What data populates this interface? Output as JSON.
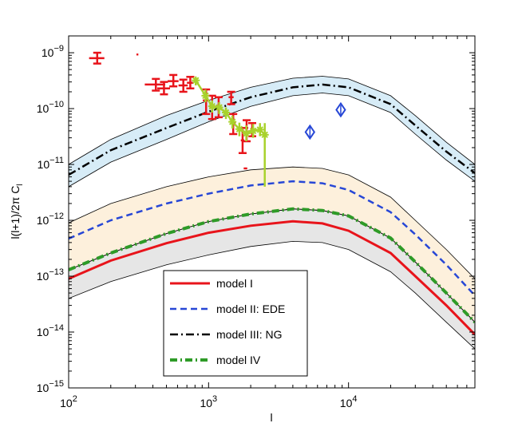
{
  "chart_data": {
    "type": "line",
    "xscale": "log",
    "yscale": "log",
    "xlim": [
      100,
      80000
    ],
    "ylim": [
      1e-15,
      2e-09
    ],
    "xlabel": "l",
    "ylabel": "l(l+1)/2π C_l",
    "x_ticks": [
      {
        "value": 100,
        "base": "10",
        "exp": "2"
      },
      {
        "value": 1000,
        "base": "10",
        "exp": "3"
      },
      {
        "value": 10000,
        "base": "10",
        "exp": "4"
      }
    ],
    "y_ticks": [
      {
        "value": 1e-15,
        "base": "10",
        "exp": "−15"
      },
      {
        "value": 1e-14,
        "base": "10",
        "exp": "−14"
      },
      {
        "value": 1e-13,
        "base": "10",
        "exp": "−13"
      },
      {
        "value": 1e-12,
        "base": "10",
        "exp": "−12"
      },
      {
        "value": 1e-11,
        "base": "10",
        "exp": "−11"
      },
      {
        "value": 1e-10,
        "base": "10",
        "exp": "−10"
      },
      {
        "value": 1e-09,
        "base": "10",
        "exp": "−9"
      }
    ],
    "x": [
      100,
      200,
      500,
      1000,
      2000,
      4000,
      6500,
      10000,
      20000,
      30000,
      50000,
      80000
    ],
    "series": [
      {
        "name": "model I",
        "color": "#e8141b",
        "style": "solid",
        "values": [
          9e-14,
          1.9e-13,
          3.9e-13,
          6e-13,
          8e-13,
          9.6e-13,
          8.8e-13,
          6.5e-13,
          2.6e-13,
          1e-13,
          3e-14,
          9e-15
        ]
      },
      {
        "name": "model II: EDE",
        "color": "#2747d6",
        "style": "dashed",
        "values": [
          4.7e-13,
          1e-12,
          2e-12,
          3e-12,
          4.2e-12,
          5e-12,
          4.6e-12,
          3.5e-12,
          1.4e-12,
          5.6e-13,
          1.6e-13,
          4.5e-14
        ]
      },
      {
        "name": "model III: NG",
        "color": "#000000",
        "style": "dashdot",
        "values": [
          6.5e-12,
          1.8e-11,
          4.5e-11,
          8.8e-11,
          1.6e-10,
          2.4e-10,
          2.7e-10,
          2.4e-10,
          1.2e-10,
          5e-11,
          1.7e-11,
          7e-12
        ]
      },
      {
        "name": "model IV",
        "color": "#2e9b27",
        "style": "thick-dashdot",
        "values": [
          1.3e-13,
          2.6e-13,
          5.8e-13,
          9.5e-13,
          1.3e-12,
          1.6e-12,
          1.5e-12,
          1.2e-12,
          4.8e-13,
          1.8e-13,
          5e-14,
          1.5e-14
        ]
      }
    ],
    "bands": [
      {
        "name": "NG band",
        "fill": "#d7ecf7",
        "upper": [
          1e-11,
          2.8e-11,
          7.5e-11,
          1.4e-10,
          2.4e-10,
          3.5e-10,
          3.8e-10,
          3.4e-10,
          1.7e-10,
          7.5e-11,
          2.5e-11,
          1e-11
        ],
        "lower": [
          4e-12,
          1.1e-11,
          2.8e-11,
          5.8e-11,
          1.1e-10,
          1.7e-10,
          1.9e-10,
          1.7e-10,
          8.5e-11,
          3.5e-11,
          1.2e-11,
          5e-12
        ]
      },
      {
        "name": "EDE band",
        "fill": "#fdf0dc",
        "upper": [
          9e-13,
          2e-12,
          4e-12,
          6e-12,
          8e-12,
          9e-12,
          8.5e-12,
          6.5e-12,
          2.6e-12,
          1e-12,
          3e-13,
          9e-14
        ],
        "lower": [
          1.3e-13,
          2.6e-13,
          5.8e-13,
          9.5e-13,
          1.3e-12,
          1.6e-12,
          1.5e-12,
          1.2e-12,
          4.8e-13,
          1.8e-13,
          5e-14,
          1.5e-14
        ]
      },
      {
        "name": "model I band",
        "fill": "#e6e6e6",
        "upper": [
          1.3e-13,
          2.6e-13,
          5.8e-13,
          9.5e-13,
          1.3e-12,
          1.6e-12,
          1.5e-12,
          1.2e-12,
          4.8e-13,
          1.8e-13,
          5e-14,
          1.5e-14
        ],
        "lower": [
          4e-14,
          8e-14,
          1.6e-13,
          2.4e-13,
          3.4e-13,
          4.2e-13,
          4e-13,
          3e-13,
          1.2e-13,
          5e-14,
          1.5e-14,
          5e-15
        ]
      }
    ],
    "data_points": [
      {
        "l": 160,
        "y": 8e-10,
        "ylo": 6.4e-10,
        "yhi": 1e-09,
        "dl": 20,
        "color": "#e8141b",
        "kind": "errorbar"
      },
      {
        "l": 310,
        "y": 9.3e-10,
        "color": "#e8141b",
        "kind": "dot"
      },
      {
        "l": 420,
        "y": 2.7e-10,
        "ylo": 2.1e-10,
        "yhi": 3.4e-10,
        "dl": 70,
        "color": "#e8141b",
        "kind": "errorbar"
      },
      {
        "l": 480,
        "y": 2.3e-10,
        "ylo": 1.8e-10,
        "yhi": 3e-10,
        "dl": 50,
        "color": "#e8141b",
        "kind": "errorbar"
      },
      {
        "l": 560,
        "y": 3.1e-10,
        "ylo": 2.5e-10,
        "yhi": 4e-10,
        "dl": 50,
        "color": "#e8141b",
        "kind": "errorbar"
      },
      {
        "l": 660,
        "y": 2.6e-10,
        "ylo": 2e-10,
        "yhi": 3.3e-10,
        "dl": 50,
        "color": "#e8141b",
        "kind": "errorbar"
      },
      {
        "l": 740,
        "y": 2.9e-10,
        "ylo": 2.3e-10,
        "yhi": 3.7e-10,
        "dl": 40,
        "color": "#e8141b",
        "kind": "errorbar"
      },
      {
        "l": 960,
        "y": 1.4e-10,
        "ylo": 8e-11,
        "yhi": 2.2e-10,
        "dl": 50,
        "color": "#e8141b",
        "kind": "errorbar"
      },
      {
        "l": 1060,
        "y": 1.1e-10,
        "ylo": 6.5e-11,
        "yhi": 1.7e-10,
        "dl": 50,
        "color": "#e8141b",
        "kind": "errorbar"
      },
      {
        "l": 1180,
        "y": 1.1e-10,
        "ylo": 7e-11,
        "yhi": 1.6e-10,
        "dl": 50,
        "color": "#e8141b",
        "kind": "errorbar"
      },
      {
        "l": 1450,
        "y": 1.6e-10,
        "ylo": 1.2e-10,
        "yhi": 2e-10,
        "dl": 60,
        "color": "#e8141b",
        "kind": "errorbar"
      },
      {
        "l": 1500,
        "y": 5.5e-11,
        "ylo": 3.5e-11,
        "yhi": 8e-11,
        "dl": 60,
        "color": "#e8141b",
        "kind": "errorbar"
      },
      {
        "l": 1750,
        "y": 2.7e-11,
        "ylo": 1.6e-11,
        "yhi": 4.5e-11,
        "dl": 50,
        "color": "#e8141b",
        "kind": "errorbar"
      },
      {
        "l": 1870,
        "y": 4.5e-11,
        "ylo": 2.6e-11,
        "yhi": 6.2e-11,
        "dl": 50,
        "color": "#e8141b",
        "kind": "errorbar"
      },
      {
        "l": 2050,
        "y": 4.3e-11,
        "ylo": 3.2e-11,
        "yhi": 5.5e-11,
        "dl": 60,
        "color": "#e8141b",
        "kind": "errorbar"
      },
      {
        "l": 1810,
        "y": 8.5e-12,
        "color": "#e8141b",
        "kind": "dot"
      },
      {
        "l": 1860,
        "y": 8.5e-12,
        "color": "#e8141b",
        "kind": "dot"
      },
      {
        "l": 5300,
        "y": 3.8e-11,
        "ylo": 3e-11,
        "yhi": 4.7e-11,
        "color": "#2747d6",
        "kind": "diamond"
      },
      {
        "l": 8800,
        "y": 9.5e-11,
        "ylo": 7.8e-11,
        "yhi": 1.15e-10,
        "color": "#2747d6",
        "kind": "diamond"
      }
    ],
    "green_series": {
      "name": "green data",
      "color": "#a8d22c",
      "points": [
        {
          "l": 810,
          "y": 3.2e-10,
          "ylo": 2.6e-10,
          "yhi": 3.6e-10
        },
        {
          "l": 950,
          "y": 1.7e-10,
          "ylo": 1.3e-10,
          "yhi": 2.2e-10
        },
        {
          "l": 1060,
          "y": 1.1e-10,
          "ylo": 8.5e-11,
          "yhi": 1.4e-10
        },
        {
          "l": 1190,
          "y": 1.05e-10,
          "ylo": 8e-11,
          "yhi": 1.3e-10
        },
        {
          "l": 1330,
          "y": 8.5e-11,
          "ylo": 6.5e-11,
          "yhi": 1.05e-10
        },
        {
          "l": 1480,
          "y": 5.8e-11,
          "ylo": 4.4e-11,
          "yhi": 7.5e-11
        },
        {
          "l": 1660,
          "y": 4.3e-11,
          "ylo": 3.2e-11,
          "yhi": 5.6e-11
        },
        {
          "l": 1860,
          "y": 3.6e-11,
          "ylo": 2.6e-11,
          "yhi": 5e-11
        },
        {
          "l": 2080,
          "y": 4e-11,
          "ylo": 3e-11,
          "yhi": 5.3e-11
        },
        {
          "l": 2330,
          "y": 4.2e-11,
          "ylo": 3.2e-11,
          "yhi": 5.5e-11
        },
        {
          "l": 2520,
          "y": 3.4e-11,
          "ylo": 4e-12,
          "yhi": 5.5e-11
        }
      ]
    },
    "legend": {
      "position": "lower-center",
      "entries": [
        {
          "label": "model I",
          "color": "#e8141b",
          "style": "solid"
        },
        {
          "label": "model II: EDE",
          "color": "#2747d6",
          "style": "dashed"
        },
        {
          "label": "model III: NG",
          "color": "#000000",
          "style": "dashdot"
        },
        {
          "label": "model IV",
          "color": "#2e9b27",
          "style": "thick-dashdot"
        }
      ]
    }
  }
}
